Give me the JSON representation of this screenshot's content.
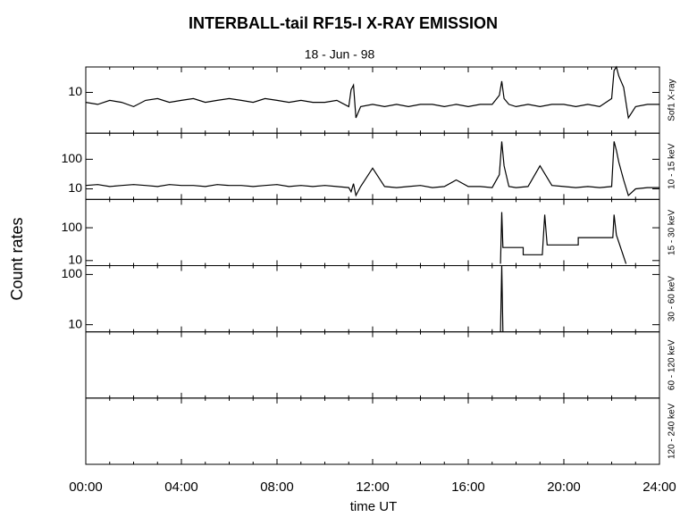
{
  "chart_data": {
    "type": "line",
    "title": "INTERBALL-tail  RF15-I   X-RAY  EMISSION",
    "subtitle": "18 - Jun - 98",
    "xlabel": "time UT",
    "ylabel": "Count  rates",
    "color": "#000000",
    "log_scale": true,
    "xlim": [
      0,
      24
    ],
    "xticks": [
      {
        "value": 0,
        "label": "00:00"
      },
      {
        "value": 4,
        "label": "04:00"
      },
      {
        "value": 8,
        "label": "08:00"
      },
      {
        "value": 12,
        "label": "12:00"
      },
      {
        "value": 16,
        "label": "16:00"
      },
      {
        "value": 20,
        "label": "20:00"
      },
      {
        "value": 24,
        "label": "24:00"
      }
    ],
    "xminorticks": [
      1,
      2,
      3,
      5,
      6,
      7,
      9,
      10,
      11,
      13,
      14,
      15,
      17,
      18,
      19,
      21,
      22,
      23
    ],
    "panels": [
      {
        "name": "Sof1 X-ray",
        "ylim": [
          2.3,
          25
        ],
        "yticks": [
          10
        ],
        "x": [
          0,
          0.5,
          1,
          1.5,
          2,
          2.5,
          3,
          3.5,
          4,
          4.5,
          5,
          5.5,
          6,
          6.5,
          7,
          7.5,
          8,
          8.5,
          9,
          9.5,
          10,
          10.5,
          11,
          11.1,
          11.2,
          11.3,
          11.5,
          12,
          12.5,
          13,
          13.5,
          14,
          14.5,
          15,
          15.5,
          16,
          16.5,
          17,
          17.3,
          17.4,
          17.5,
          17.7,
          18,
          18.5,
          19,
          19.5,
          20,
          20.5,
          21,
          21.5,
          22,
          22.1,
          22.2,
          22.3,
          22.5,
          22.7,
          23,
          23.5,
          24
        ],
        "values": [
          7,
          6.5,
          7.5,
          7,
          6,
          7.5,
          8,
          7,
          7.5,
          8,
          7,
          7.5,
          8,
          7.5,
          7,
          8,
          7.5,
          7,
          7.5,
          7,
          7,
          7.5,
          6,
          11,
          13,
          4,
          6,
          6.5,
          6,
          6.5,
          6,
          6.5,
          6.5,
          6,
          6.5,
          6,
          6.5,
          6.5,
          9,
          15,
          8,
          6.5,
          6,
          6.5,
          6,
          6.5,
          6.5,
          6,
          6.5,
          6,
          8,
          22,
          25,
          18,
          12,
          4,
          6,
          6.5,
          6.5
        ]
      },
      {
        "name": "10 - 15 keV",
        "ylim": [
          4.4,
          760
        ],
        "yticks": [
          10,
          100
        ],
        "x": [
          0,
          0.5,
          1,
          1.5,
          2,
          2.5,
          3,
          3.5,
          4,
          4.5,
          5,
          5.5,
          6,
          6.5,
          7,
          7.5,
          8,
          8.5,
          9,
          9.5,
          10,
          10.5,
          11,
          11.1,
          11.2,
          11.3,
          11.5,
          12,
          12.5,
          13,
          13.5,
          14,
          14.5,
          15,
          15.5,
          16,
          16.5,
          17,
          17.3,
          17.4,
          17.5,
          17.7,
          18,
          18.5,
          19,
          19.5,
          20,
          20.5,
          21,
          21.5,
          22,
          22.1,
          22.2,
          22.3,
          22.5,
          22.7,
          23,
          23.5,
          24
        ],
        "values": [
          13,
          14,
          12,
          13,
          14,
          13,
          12,
          14,
          13,
          13,
          12,
          14,
          13,
          13,
          12,
          13,
          14,
          12,
          13,
          12,
          13,
          12,
          11,
          8,
          15,
          6,
          12,
          50,
          12,
          11,
          12,
          13,
          11,
          12,
          20,
          12,
          12,
          11,
          30,
          400,
          60,
          12,
          11,
          12,
          60,
          13,
          12,
          11,
          12,
          11,
          12,
          400,
          200,
          80,
          20,
          6,
          10,
          11,
          11
        ]
      },
      {
        "name": "15 - 30 keV",
        "ylim": [
          7,
          730
        ],
        "yticks": [
          10,
          100
        ],
        "x": [
          17.35,
          17.4,
          17.45,
          18.3,
          18.3,
          19.1,
          19.2,
          19.3,
          20.6,
          20.6,
          22.05,
          22.1,
          22.2,
          22.6
        ],
        "values": [
          8,
          300,
          25,
          25,
          15,
          15,
          250,
          30,
          30,
          50,
          50,
          250,
          60,
          8
        ]
      },
      {
        "name": "30 - 60 keV",
        "ylim": [
          7.2,
          150
        ],
        "yticks": [
          10,
          100
        ],
        "x": [
          17.35,
          17.4,
          17.45
        ],
        "values": [
          7.2,
          150,
          7.2
        ]
      },
      {
        "name": "60 - 120 keV"
      },
      {
        "name": "120 - 240 keV"
      }
    ]
  }
}
